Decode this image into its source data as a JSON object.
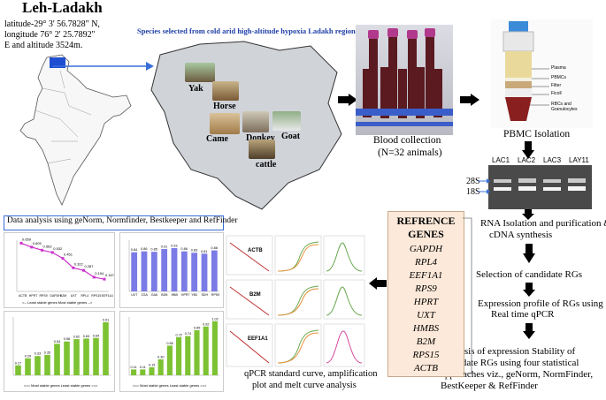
{
  "location": {
    "title": "Leh-Ladakh",
    "coords": [
      "latitude-29° 3' 56.7828\" N,",
      "longitude 76° 2' 25.7892''",
      "E and altitude 3524m."
    ]
  },
  "species_panel": {
    "title": "Species selected from cold arid high-altitude hypoxia Ladakh region",
    "animals": [
      "Yak",
      "Horse",
      "Came",
      "Donkey",
      "Goat",
      "cattle"
    ]
  },
  "blood": {
    "title": "Blood collection",
    "count": "(N=32 animals)"
  },
  "pbmc": {
    "title": "PBMC  Isolation",
    "layers": [
      "Plasma",
      "PBMCs",
      "Filter",
      "Ficoll",
      "RBCs and Granulocytes"
    ]
  },
  "gel": {
    "lanes": [
      "LAC1",
      "LAC2",
      "LAC3",
      "LAY11"
    ],
    "bands": [
      "28S",
      "18S"
    ]
  },
  "genes_panel": {
    "title": [
      "REFRENCE",
      "GENES"
    ],
    "genes": [
      "GAPDH",
      "RPL4",
      "EEF1A1",
      "RPS9",
      "HPRT",
      "UXT",
      "HMBS",
      "B2M",
      "RPS15",
      "ACTB"
    ]
  },
  "workflow": {
    "step1": [
      "RNA Isolation and purification &",
      "cDNA  synthesis"
    ],
    "step2": "Selection of candidate RGs",
    "step3": [
      "Expression profile of RGs using",
      "Real time qPCR"
    ],
    "step4": [
      "Analysis  of  expression   Stability  of",
      "candidate RGs using four statistical",
      "approaches viz.,  geNorm, NormFinder,",
      "BestKeeper & RefFinder"
    ]
  },
  "qpcr": {
    "caption": [
      "qPCR standard curve, amplification",
      "plot and melt curve analysis"
    ],
    "genes": [
      "ACTB",
      "B2M",
      "EEF1A1"
    ]
  },
  "data_analysis": {
    "title": "Data analysis using geNorm, Normfinder, Bestkeeper and RefFinder",
    "chart1_labels": [
      "ACTB",
      "HPRT",
      "RPS9",
      "GAPDH",
      "B2M",
      "UXT",
      "RPL4",
      "RPS15",
      "EEF1A1"
    ],
    "chart1_values": [
      0.659,
      0.605,
      0.563,
      0.532,
      0.451,
      0.322,
      0.287,
      0.194,
      0.167
    ],
    "chart1_values_text": [
      "0.659",
      "0.605",
      "0.563",
      "0.532",
      "0.451",
      "0.322",
      "0.287",
      "0.194",
      "0.167"
    ],
    "chart1_axis": "<-- Least stable genes    Most stable genes -->",
    "chart2_labels": [
      "UXT",
      "CSA",
      "GA6",
      "B2M",
      "HBB",
      "HPRT",
      "YBX",
      "SDH",
      "RPS9"
    ],
    "chart2_values": [
      0.84,
      0.86,
      0.85,
      0.91,
      0.93,
      0.86,
      0.83,
      0.81,
      0.88
    ],
    "chart2_values_text": [
      "0.84",
      "0.86",
      "0.85",
      "0.91",
      "0.93",
      "0.86",
      "0.83",
      "0.81",
      "0.88"
    ],
    "chart3_values": [
      0.17,
      0.29,
      0.33,
      0.35,
      0.54,
      0.58,
      0.62,
      0.63,
      0.64,
      0.91
    ],
    "chart3_values_text": [
      "0.17",
      "0.29",
      "0.33",
      "0.35",
      "0.54",
      "0.58",
      "0.62",
      "0.63",
      "0.64",
      "0.91"
    ],
    "chart3_axis": "<== Most stable genes    Least stable genes ==>",
    "chart4_values": [
      0.11,
      0.11,
      0.15,
      0.3,
      0.56,
      0.72,
      0.74,
      0.85,
      0.92,
      1.02
    ],
    "chart4_values_text": [
      "0.11",
      "0.11",
      "0.15",
      "0.30",
      "0.56",
      "0.72",
      "0.74",
      "0.85",
      "0.92",
      "1.02"
    ],
    "chart4_axis": "<== Most stable genes    Least stable genes ==>",
    "colors": {
      "line": "#cc33cc",
      "purple_bar": "#7b7be6",
      "green_bar": "#7cc233"
    }
  }
}
